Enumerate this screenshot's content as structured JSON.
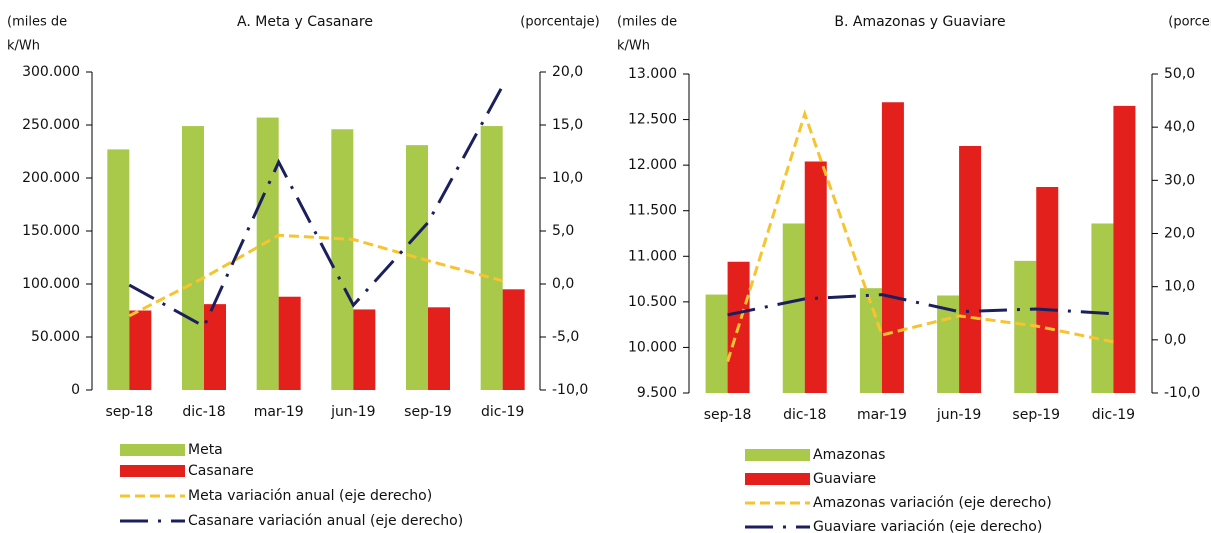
{
  "chart_data": [
    {
      "type": "bar",
      "title": "A. Meta y Casanare",
      "ylabel": [
        "(miles de",
        "k/Wh"
      ],
      "y2label": "(porcentaje)",
      "categories": [
        "sep-18",
        "dic-18",
        "mar-19",
        "jun-19",
        "sep-19",
        "dic-19"
      ],
      "ylim": [
        0,
        300000
      ],
      "yticks": [
        0,
        {
          "value": 50000,
          "label": "50.000"
        },
        {
          "value": 100000,
          "label": "100.000"
        },
        {
          "value": 150000,
          "label": "150.000"
        },
        {
          "value": 200000,
          "label": "200.000"
        },
        {
          "value": 250000,
          "label": "250.000"
        },
        {
          "value": 300000,
          "label": "300.000"
        }
      ],
      "y2lim": [
        -10,
        20
      ],
      "y2ticks": [
        {
          "value": -10,
          "label": "-10,0"
        },
        {
          "value": -5,
          "label": "-5,0"
        },
        {
          "value": 0,
          "label": "0,0"
        },
        {
          "value": 5,
          "label": "5,0"
        },
        {
          "value": 10,
          "label": "10,0"
        },
        {
          "value": 15,
          "label": "15,0"
        },
        {
          "value": 20,
          "label": "20,0"
        }
      ],
      "series": [
        {
          "name": "Meta",
          "color": "#a9c94a",
          "values": [
            227000,
            249000,
            257000,
            246000,
            231000,
            249000
          ]
        },
        {
          "name": "Casanare",
          "color": "#e3201b",
          "values": [
            75000,
            81000,
            88000,
            76000,
            78000,
            95000
          ]
        },
        {
          "name": "Meta variación anual (eje derecho)",
          "color": "#f7c42f",
          "axis": "y2",
          "style": "dashed",
          "values": [
            -3.0,
            0.6,
            4.6,
            4.2,
            2.2,
            0.3
          ]
        },
        {
          "name": "Casanare variación anual (eje derecho)",
          "color": "#1b1f5e",
          "axis": "y2",
          "style": "dash-dot",
          "values": [
            -0.1,
            -4.0,
            11.5,
            -2.0,
            5.8,
            18.7
          ]
        }
      ]
    },
    {
      "type": "bar",
      "title": "B. Amazonas y Guaviare",
      "ylabel": [
        "(miles de",
        "k/Wh"
      ],
      "y2label": "(porcentaje)",
      "categories": [
        "sep-18",
        "dic-18",
        "mar-19",
        "jun-19",
        "sep-19",
        "dic-19"
      ],
      "ylim": [
        9500,
        13000
      ],
      "yticks": [
        {
          "value": 9500,
          "label": "9.500"
        },
        {
          "value": 10000,
          "label": "10.000"
        },
        {
          "value": 10500,
          "label": "10.500"
        },
        {
          "value": 11000,
          "label": "11.000"
        },
        {
          "value": 11500,
          "label": "11.500"
        },
        {
          "value": 12000,
          "label": "12.000"
        },
        {
          "value": 12500,
          "label": "12.500"
        },
        {
          "value": 13000,
          "label": "13.000"
        }
      ],
      "y2lim": [
        -10,
        50
      ],
      "y2ticks": [
        {
          "value": -10,
          "label": "-10,0"
        },
        {
          "value": 0,
          "label": "0,0"
        },
        {
          "value": 10,
          "label": "10,0"
        },
        {
          "value": 20,
          "label": "20,0"
        },
        {
          "value": 30,
          "label": "30,0"
        },
        {
          "value": 40,
          "label": "40,0"
        },
        {
          "value": 50,
          "label": "50,0"
        }
      ],
      "series": [
        {
          "name": "Amazonas",
          "color": "#a9c94a",
          "values": [
            10580,
            11360,
            10650,
            10570,
            10950,
            11360
          ]
        },
        {
          "name": "Guaviare",
          "color": "#e3201b",
          "values": [
            10940,
            12040,
            12690,
            12210,
            11760,
            12650
          ]
        },
        {
          "name": "Amazonas variación (eje derecho)",
          "color": "#f7c42f",
          "axis": "y2",
          "style": "dashed",
          "values": [
            -4.1,
            42.5,
            0.9,
            4.5,
            2.6,
            -0.4
          ]
        },
        {
          "name": "Guaviare variación (eje derecho)",
          "color": "#1b1f5e",
          "axis": "y2",
          "style": "dash-dot",
          "values": [
            4.7,
            7.7,
            8.5,
            5.3,
            5.8,
            4.9
          ]
        }
      ]
    }
  ]
}
